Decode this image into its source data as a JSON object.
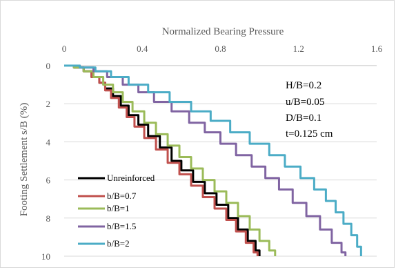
{
  "chart_data": {
    "type": "line",
    "title": "",
    "xlabel": "Normalized Bearing Pressure",
    "ylabel": "Footing Settlement s/B (%)",
    "x_axis_position": "top",
    "y_axis_inverted": true,
    "xlim": [
      0,
      1.6
    ],
    "ylim": [
      0,
      10
    ],
    "x_ticks": [
      0,
      0.4,
      0.8,
      1.2,
      1.6
    ],
    "x_tick_labels": [
      "0",
      "0.4",
      "0.8",
      "1.2",
      "1.6"
    ],
    "y_ticks": [
      0,
      2,
      4,
      6,
      8,
      10
    ],
    "y_tick_labels": [
      "0",
      "2",
      "4",
      "6",
      "8",
      "10"
    ],
    "grid": "horizontal",
    "legend_position": "bottom-left",
    "annotations": [
      "H/B=0.2",
      "u/B=0.05",
      "D/B=0.1",
      "t=0.125 cm"
    ],
    "series": [
      {
        "name": "Unreinforced",
        "color": "#000000",
        "points": [
          [
            0,
            0
          ],
          [
            0.05,
            0.1
          ],
          [
            0.1,
            0.3
          ],
          [
            0.14,
            0.6
          ],
          [
            0.18,
            0.9
          ],
          [
            0.21,
            1.2
          ],
          [
            0.25,
            1.6
          ],
          [
            0.29,
            2.1
          ],
          [
            0.33,
            2.6
          ],
          [
            0.38,
            3.1
          ],
          [
            0.43,
            3.7
          ],
          [
            0.49,
            4.3
          ],
          [
            0.55,
            5.0
          ],
          [
            0.6,
            5.5
          ],
          [
            0.66,
            6.1
          ],
          [
            0.72,
            6.7
          ],
          [
            0.78,
            7.3
          ],
          [
            0.84,
            8.0
          ],
          [
            0.89,
            8.6
          ],
          [
            0.94,
            9.2
          ],
          [
            0.98,
            9.7
          ],
          [
            1.0,
            10.0
          ]
        ]
      },
      {
        "name": "b/B=0.7",
        "color": "#c0504d",
        "points": [
          [
            0,
            0
          ],
          [
            0.05,
            0.1
          ],
          [
            0.1,
            0.3
          ],
          [
            0.14,
            0.6
          ],
          [
            0.18,
            0.9
          ],
          [
            0.21,
            1.3
          ],
          [
            0.24,
            1.7
          ],
          [
            0.28,
            2.2
          ],
          [
            0.32,
            2.7
          ],
          [
            0.36,
            3.2
          ],
          [
            0.41,
            3.8
          ],
          [
            0.47,
            4.4
          ],
          [
            0.53,
            5.1
          ],
          [
            0.59,
            5.7
          ],
          [
            0.65,
            6.3
          ],
          [
            0.71,
            6.9
          ],
          [
            0.77,
            7.5
          ],
          [
            0.83,
            8.1
          ],
          [
            0.88,
            8.7
          ],
          [
            0.93,
            9.3
          ],
          [
            0.97,
            9.8
          ],
          [
            0.99,
            10.0
          ]
        ]
      },
      {
        "name": "b/B=1",
        "color": "#9bbb59",
        "points": [
          [
            0,
            0
          ],
          [
            0.05,
            0.1
          ],
          [
            0.1,
            0.3
          ],
          [
            0.15,
            0.6
          ],
          [
            0.2,
            1.0
          ],
          [
            0.25,
            1.4
          ],
          [
            0.3,
            1.9
          ],
          [
            0.35,
            2.4
          ],
          [
            0.41,
            3.0
          ],
          [
            0.47,
            3.6
          ],
          [
            0.53,
            4.2
          ],
          [
            0.59,
            4.8
          ],
          [
            0.65,
            5.4
          ],
          [
            0.71,
            6.0
          ],
          [
            0.77,
            6.6
          ],
          [
            0.83,
            7.2
          ],
          [
            0.89,
            7.9
          ],
          [
            0.95,
            8.6
          ],
          [
            1.0,
            9.2
          ],
          [
            1.05,
            9.7
          ],
          [
            1.08,
            10.0
          ]
        ]
      },
      {
        "name": "b/B=1.5",
        "color": "#8064a2",
        "points": [
          [
            0,
            0
          ],
          [
            0.08,
            0.1
          ],
          [
            0.15,
            0.3
          ],
          [
            0.22,
            0.6
          ],
          [
            0.3,
            1.0
          ],
          [
            0.38,
            1.4
          ],
          [
            0.46,
            1.9
          ],
          [
            0.55,
            2.4
          ],
          [
            0.64,
            3.0
          ],
          [
            0.72,
            3.5
          ],
          [
            0.8,
            4.1
          ],
          [
            0.88,
            4.7
          ],
          [
            0.96,
            5.3
          ],
          [
            1.03,
            5.9
          ],
          [
            1.1,
            6.5
          ],
          [
            1.17,
            7.2
          ],
          [
            1.24,
            7.9
          ],
          [
            1.31,
            8.6
          ],
          [
            1.37,
            9.3
          ],
          [
            1.42,
            9.8
          ],
          [
            1.44,
            10.0
          ]
        ]
      },
      {
        "name": "b/B=2",
        "color": "#4bacc6",
        "points": [
          [
            0,
            0
          ],
          [
            0.08,
            0.1
          ],
          [
            0.16,
            0.3
          ],
          [
            0.24,
            0.6
          ],
          [
            0.33,
            1.0
          ],
          [
            0.43,
            1.4
          ],
          [
            0.54,
            1.9
          ],
          [
            0.65,
            2.4
          ],
          [
            0.75,
            2.9
          ],
          [
            0.85,
            3.5
          ],
          [
            0.95,
            4.1
          ],
          [
            1.05,
            4.7
          ],
          [
            1.13,
            5.3
          ],
          [
            1.21,
            5.9
          ],
          [
            1.28,
            6.5
          ],
          [
            1.34,
            7.1
          ],
          [
            1.39,
            7.7
          ],
          [
            1.43,
            8.3
          ],
          [
            1.47,
            8.9
          ],
          [
            1.5,
            9.5
          ],
          [
            1.52,
            10.0
          ]
        ]
      }
    ]
  }
}
